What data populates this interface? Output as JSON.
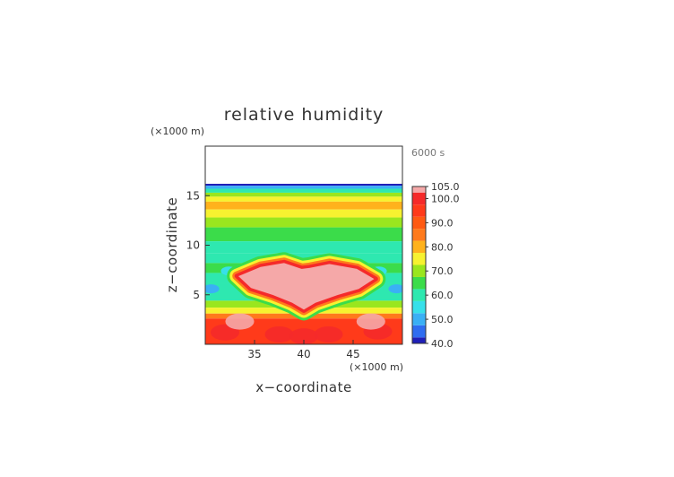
{
  "chart_data": {
    "type": "heatmap",
    "title": "relative humidity",
    "time_label": "6000 s",
    "xlabel": "x−coordinate",
    "ylabel": "z−coordinate",
    "x_unit": "(×1000 m)",
    "y_unit": "(×1000 m)",
    "xlim": [
      30,
      50
    ],
    "ylim": [
      0,
      20
    ],
    "x_ticks": [
      35,
      40,
      45
    ],
    "y_ticks": [
      5,
      10,
      15
    ],
    "colorbar_ticks": [
      "105.0",
      "100.0",
      "90.0",
      "80.0",
      "70.0",
      "60.0",
      "50.0",
      "40.0"
    ],
    "colorbar_values": [
      105,
      100,
      90,
      80,
      70,
      60,
      50,
      40
    ],
    "color_range": [
      40,
      105
    ],
    "palette": {
      "40": "#1f1fb8",
      "45": "#2f6df0",
      "50": "#3ab0f5",
      "55": "#37e0ea",
      "60": "#2ee8b0",
      "65": "#3bdc4a",
      "70": "#9ae61e",
      "75": "#f7f230",
      "80": "#ffb21c",
      "85": "#ff7a1c",
      "90": "#ff5a12",
      "95": "#ff3a1a",
      "100": "#f52a2a",
      "105": "#f5a8a8"
    },
    "bands": [
      {
        "z": [
          16.2,
          20
        ],
        "value": null
      },
      {
        "z": [
          16.0,
          16.2
        ],
        "value": 40
      },
      {
        "z": [
          15.7,
          16.0
        ],
        "value": 50
      },
      {
        "z": [
          15.3,
          15.7
        ],
        "value": 60
      },
      {
        "z": [
          14.9,
          15.3
        ],
        "value": 70
      },
      {
        "z": [
          14.4,
          14.9
        ],
        "value": 75
      },
      {
        "z": [
          13.6,
          14.4
        ],
        "value": 78
      },
      {
        "z": [
          12.8,
          13.6
        ],
        "value": 75
      },
      {
        "z": [
          11.8,
          12.8
        ],
        "value": 70
      },
      {
        "z": [
          10.4,
          11.8
        ],
        "value": 66
      },
      {
        "z": [
          9.2,
          10.4
        ],
        "value": 62
      },
      {
        "z": [
          8.2,
          9.2
        ],
        "value": 58
      },
      {
        "z": [
          7.2,
          8.2
        ],
        "value": 64
      },
      {
        "z": [
          6.2,
          7.2
        ],
        "value": 58
      },
      {
        "z": [
          4.4,
          6.2
        ],
        "value": 60
      },
      {
        "z": [
          3.7,
          4.4
        ],
        "value": 70
      },
      {
        "z": [
          3.1,
          3.7
        ],
        "value": 77
      },
      {
        "z": [
          2.6,
          3.1
        ],
        "value": 84
      },
      {
        "z": [
          0,
          2.6
        ],
        "value": 95
      }
    ],
    "saturated_cloud": {
      "value": 105,
      "outline": [
        [
          33.2,
          6.9
        ],
        [
          35.6,
          7.9
        ],
        [
          38.0,
          8.3
        ],
        [
          39.8,
          7.7
        ],
        [
          40.6,
          7.8
        ],
        [
          42.6,
          8.2
        ],
        [
          45.4,
          7.7
        ],
        [
          47.3,
          6.6
        ],
        [
          45.6,
          5.5
        ],
        [
          43.5,
          4.9
        ],
        [
          41.2,
          4.1
        ],
        [
          40.0,
          3.4
        ],
        [
          38.8,
          4.1
        ],
        [
          36.8,
          4.9
        ],
        [
          34.6,
          5.6
        ]
      ]
    },
    "surface_blobs": [
      {
        "x": 32.0,
        "z": 1.2,
        "value": 100
      },
      {
        "x": 37.5,
        "z": 1.0,
        "value": 100
      },
      {
        "x": 40.0,
        "z": 0.8,
        "value": 100
      },
      {
        "x": 42.5,
        "z": 1.0,
        "value": 100
      },
      {
        "x": 47.5,
        "z": 1.3,
        "value": 100
      },
      {
        "x": 33.5,
        "z": 2.3,
        "value": 105
      },
      {
        "x": 46.8,
        "z": 2.3,
        "value": 105
      }
    ],
    "dry_spots": [
      {
        "x": 30.6,
        "z": 5.6,
        "value": 50
      },
      {
        "x": 49.4,
        "z": 5.6,
        "value": 50
      },
      {
        "x": 32.4,
        "z": 7.4,
        "value": 55
      },
      {
        "x": 47.6,
        "z": 7.4,
        "value": 55
      }
    ]
  }
}
